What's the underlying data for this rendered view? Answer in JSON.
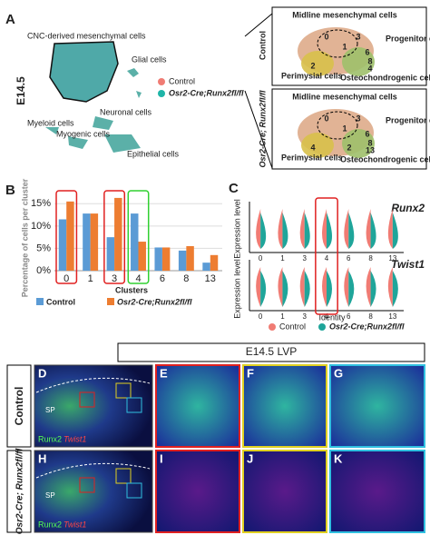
{
  "panel_a": {
    "label": "A",
    "stage": "E14.5",
    "umap_labels": [
      "CNC-derived mesenchymal cells",
      "Glial cells",
      "Neuronal cells",
      "Myeloid cells",
      "Myogenic cells",
      "Epithelial cells"
    ],
    "legend": [
      "Control",
      "Osr2-Cre;Runx2fl/fl"
    ],
    "insets": [
      {
        "condition": "Control",
        "labels": [
          "Midline mesenchymal cells",
          "Progenitor cells",
          "Perimysial cells",
          "Osteochondrogenic cells"
        ],
        "clusters": [
          "0",
          "1",
          "3",
          "6",
          "8",
          "4",
          "2"
        ]
      },
      {
        "condition": "Osr2-Cre; Runx2fl/fl",
        "labels": [
          "Midline mesenchymal cells",
          "Progenitor cells",
          "Perimysial cells",
          "Osteochondrogenic cells"
        ],
        "clusters": [
          "0",
          "1",
          "3",
          "6",
          "8",
          "13",
          "4",
          "2"
        ]
      }
    ]
  },
  "chart_data": {
    "type": "bar",
    "label": "B",
    "y_label": "Percentage of cells per cluster",
    "x_label": "Clusters",
    "categories": [
      "0",
      "1",
      "3",
      "4",
      "6",
      "8",
      "13"
    ],
    "series": [
      {
        "name": "Control",
        "color": "#5b9bd5",
        "values": [
          11.5,
          12.8,
          7.5,
          12.8,
          5.2,
          4.5,
          1.8
        ]
      },
      {
        "name": "Osr2-Cre;Runx2fl/fl",
        "color": "#ed7d31",
        "values": [
          15.5,
          12.8,
          16.3,
          6.5,
          5.2,
          5.5,
          3.5
        ]
      }
    ],
    "ylim": [
      0,
      17.5
    ],
    "yticks": [
      {
        "value": 0,
        "label": "0%"
      },
      {
        "value": 5,
        "label": "5%"
      },
      {
        "value": 10,
        "label": "10%"
      },
      {
        "value": 15,
        "label": "15%"
      }
    ]
  },
  "panel_c": {
    "label": "C",
    "genes": [
      "Runx2",
      "Twist1"
    ],
    "y_label": "Expression level",
    "x_label": "Identity",
    "categories": [
      "0",
      "1",
      "3",
      "4",
      "6",
      "8",
      "13"
    ],
    "legend": [
      "Control",
      "Osr2-Cre;Runx2fl/fl"
    ]
  },
  "panel_d": {
    "title": "E14.5 LVP",
    "rows": [
      "Control",
      "Osr2-Cre; Runx2fl/fl"
    ],
    "labels": [
      "D",
      "E",
      "F",
      "G",
      "H",
      "I",
      "J",
      "K"
    ],
    "stain": [
      "Runx2",
      "Twist1"
    ],
    "region": "SP"
  }
}
